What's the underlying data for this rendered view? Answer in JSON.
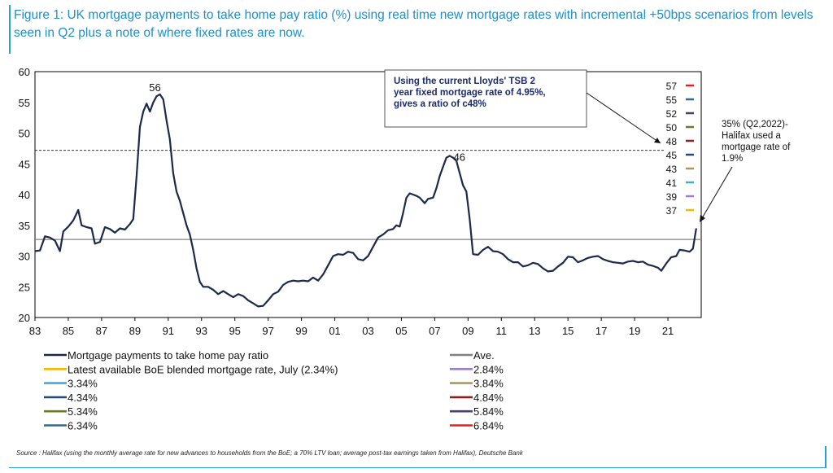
{
  "title": "Figure 1: UK mortgage payments to take home pay ratio (%) using real time new mortgage rates with incremental +50bps scenarios from levels seen in Q2 plus a note of where fixed rates are now.",
  "source": "Source : Halifax (using the monthly average rate for new advances to households from the BoE; a 70% LTV loan; average post-tax earnings taken from Halifax), Deutsche Bank",
  "chart_data": {
    "type": "line",
    "title": "UK mortgage payments to take home pay ratio (%)",
    "xlabel": "",
    "ylabel": "",
    "xlim": [
      1983,
      2023
    ],
    "ylim": [
      20,
      60
    ],
    "y_ticks": [
      "20",
      "25",
      "30",
      "35",
      "40",
      "45",
      "50",
      "55",
      "60"
    ],
    "x_ticks": [
      {
        "year": 1983,
        "label": "83"
      },
      {
        "year": 1985,
        "label": "85"
      },
      {
        "year": 1987,
        "label": "87"
      },
      {
        "year": 1989,
        "label": "89"
      },
      {
        "year": 1991,
        "label": "91"
      },
      {
        "year": 1993,
        "label": "93"
      },
      {
        "year": 1995,
        "label": "95"
      },
      {
        "year": 1997,
        "label": "97"
      },
      {
        "year": 1999,
        "label": "99"
      },
      {
        "year": 2001,
        "label": "01"
      },
      {
        "year": 2003,
        "label": "03"
      },
      {
        "year": 2005,
        "label": "05"
      },
      {
        "year": 2007,
        "label": "07"
      },
      {
        "year": 2009,
        "label": "09"
      },
      {
        "year": 2011,
        "label": "11"
      },
      {
        "year": 2013,
        "label": "13"
      },
      {
        "year": 2015,
        "label": "15"
      },
      {
        "year": 2017,
        "label": "17"
      },
      {
        "year": 2019,
        "label": "19"
      },
      {
        "year": 2021,
        "label": "21"
      }
    ],
    "series": [
      {
        "name": "Mortgage payments to take home pay ratio",
        "color": "#1b2a4a",
        "points": [
          [
            1983.0,
            30.8
          ],
          [
            1983.3,
            30.9
          ],
          [
            1983.6,
            33.2
          ],
          [
            1983.9,
            33.0
          ],
          [
            1984.2,
            32.5
          ],
          [
            1984.5,
            30.8
          ],
          [
            1984.7,
            34.0
          ],
          [
            1985.0,
            34.8
          ],
          [
            1985.3,
            35.8
          ],
          [
            1985.6,
            37.5
          ],
          [
            1985.8,
            35.0
          ],
          [
            1986.1,
            34.7
          ],
          [
            1986.4,
            34.5
          ],
          [
            1986.6,
            32.0
          ],
          [
            1986.9,
            32.3
          ],
          [
            1987.2,
            34.7
          ],
          [
            1987.5,
            34.4
          ],
          [
            1987.8,
            33.8
          ],
          [
            1988.1,
            34.5
          ],
          [
            1988.4,
            34.3
          ],
          [
            1988.7,
            35.2
          ],
          [
            1988.9,
            36.0
          ],
          [
            1989.1,
            43.0
          ],
          [
            1989.3,
            51.0
          ],
          [
            1989.5,
            53.5
          ],
          [
            1989.7,
            54.8
          ],
          [
            1989.9,
            53.5
          ],
          [
            1990.1,
            55.0
          ],
          [
            1990.3,
            56.0
          ],
          [
            1990.5,
            56.3
          ],
          [
            1990.7,
            55.5
          ],
          [
            1990.9,
            52.0
          ],
          [
            1991.1,
            49.0
          ],
          [
            1991.3,
            43.5
          ],
          [
            1991.5,
            40.5
          ],
          [
            1991.7,
            39.0
          ],
          [
            1991.9,
            37.0
          ],
          [
            1992.1,
            35.0
          ],
          [
            1992.3,
            33.5
          ],
          [
            1992.5,
            31.0
          ],
          [
            1992.7,
            28.0
          ],
          [
            1992.9,
            25.8
          ],
          [
            1993.1,
            25.0
          ],
          [
            1993.4,
            25.0
          ],
          [
            1993.7,
            24.5
          ],
          [
            1994.0,
            23.8
          ],
          [
            1994.3,
            24.3
          ],
          [
            1994.6,
            23.8
          ],
          [
            1994.9,
            23.3
          ],
          [
            1995.2,
            23.8
          ],
          [
            1995.5,
            23.5
          ],
          [
            1995.8,
            22.8
          ],
          [
            1996.1,
            22.3
          ],
          [
            1996.4,
            21.8
          ],
          [
            1996.7,
            21.9
          ],
          [
            1997.0,
            22.8
          ],
          [
            1997.3,
            23.8
          ],
          [
            1997.6,
            24.2
          ],
          [
            1997.9,
            25.3
          ],
          [
            1998.2,
            25.8
          ],
          [
            1998.5,
            26.0
          ],
          [
            1998.8,
            25.9
          ],
          [
            1999.1,
            26.0
          ],
          [
            1999.4,
            25.9
          ],
          [
            1999.7,
            26.5
          ],
          [
            2000.0,
            26.0
          ],
          [
            2000.3,
            27.0
          ],
          [
            2000.6,
            28.5
          ],
          [
            2000.9,
            30.0
          ],
          [
            2001.2,
            30.3
          ],
          [
            2001.5,
            30.2
          ],
          [
            2001.8,
            30.7
          ],
          [
            2002.1,
            30.5
          ],
          [
            2002.4,
            29.5
          ],
          [
            2002.7,
            29.3
          ],
          [
            2003.0,
            30.0
          ],
          [
            2003.3,
            31.5
          ],
          [
            2003.6,
            33.0
          ],
          [
            2003.9,
            33.5
          ],
          [
            2004.2,
            34.2
          ],
          [
            2004.5,
            34.4
          ],
          [
            2004.7,
            35.0
          ],
          [
            2004.9,
            34.8
          ],
          [
            2005.1,
            37.0
          ],
          [
            2005.3,
            39.5
          ],
          [
            2005.5,
            40.2
          ],
          [
            2005.7,
            40.0
          ],
          [
            2005.9,
            39.8
          ],
          [
            2006.1,
            39.5
          ],
          [
            2006.4,
            38.6
          ],
          [
            2006.6,
            39.3
          ],
          [
            2006.9,
            39.5
          ],
          [
            2007.1,
            41.0
          ],
          [
            2007.3,
            43.0
          ],
          [
            2007.5,
            44.5
          ],
          [
            2007.7,
            46.0
          ],
          [
            2007.9,
            46.3
          ],
          [
            2008.1,
            46.0
          ],
          [
            2008.3,
            45.5
          ],
          [
            2008.5,
            43.5
          ],
          [
            2008.7,
            41.5
          ],
          [
            2008.9,
            40.5
          ],
          [
            2009.1,
            36.0
          ],
          [
            2009.3,
            30.3
          ],
          [
            2009.6,
            30.2
          ],
          [
            2009.9,
            31.0
          ],
          [
            2010.2,
            31.5
          ],
          [
            2010.5,
            30.8
          ],
          [
            2010.8,
            30.7
          ],
          [
            2011.1,
            30.3
          ],
          [
            2011.4,
            29.5
          ],
          [
            2011.7,
            29.0
          ],
          [
            2012.0,
            29.0
          ],
          [
            2012.3,
            28.3
          ],
          [
            2012.6,
            28.5
          ],
          [
            2012.9,
            28.9
          ],
          [
            2013.2,
            28.7
          ],
          [
            2013.5,
            28.0
          ],
          [
            2013.8,
            27.5
          ],
          [
            2014.1,
            27.6
          ],
          [
            2014.4,
            28.3
          ],
          [
            2014.7,
            28.9
          ],
          [
            2015.0,
            29.9
          ],
          [
            2015.3,
            29.8
          ],
          [
            2015.6,
            29.0
          ],
          [
            2015.9,
            29.3
          ],
          [
            2016.2,
            29.7
          ],
          [
            2016.5,
            29.9
          ],
          [
            2016.8,
            30.0
          ],
          [
            2017.1,
            29.5
          ],
          [
            2017.4,
            29.2
          ],
          [
            2017.7,
            29.0
          ],
          [
            2018.0,
            28.9
          ],
          [
            2018.3,
            28.8
          ],
          [
            2018.6,
            29.1
          ],
          [
            2018.9,
            29.2
          ],
          [
            2019.2,
            29.0
          ],
          [
            2019.5,
            29.1
          ],
          [
            2019.8,
            28.6
          ],
          [
            2020.1,
            28.4
          ],
          [
            2020.4,
            28.1
          ],
          [
            2020.6,
            27.6
          ],
          [
            2020.9,
            28.8
          ],
          [
            2021.2,
            29.8
          ],
          [
            2021.5,
            30.0
          ],
          [
            2021.7,
            31.0
          ],
          [
            2022.0,
            30.9
          ],
          [
            2022.3,
            30.7
          ],
          [
            2022.5,
            31.2
          ],
          [
            2022.7,
            34.5
          ]
        ]
      }
    ],
    "average": 32.7,
    "scenarios": [
      {
        "value": 57,
        "label": "57",
        "color": "#e8201c",
        "legend": "6.84%"
      },
      {
        "value": 55,
        "label": "55",
        "color": "#2e6c8c",
        "legend": "6.34%"
      },
      {
        "value": 52,
        "label": "52",
        "color": "#4a3f66",
        "legend": "5.84%"
      },
      {
        "value": 50,
        "label": "50",
        "color": "#6a7a2a",
        "legend": "5.34%"
      },
      {
        "value": 48,
        "label": "48",
        "color": "#8a2020",
        "legend": "4.84%"
      },
      {
        "value": 45,
        "label": "45",
        "color": "#2a4a70",
        "legend": "4.34%"
      },
      {
        "value": 43,
        "label": "43",
        "color": "#a89a5a",
        "legend": "3.84%"
      },
      {
        "value": 41,
        "label": "41",
        "color": "#44aadd",
        "legend": "3.34%"
      },
      {
        "value": 39,
        "label": "39",
        "color": "#9a7fcf",
        "legend": "2.84%"
      },
      {
        "value": 37,
        "label": "37",
        "color": "#f5b800",
        "legend": "Latest available BoE blended mortgage rate, July (2.34%)"
      }
    ],
    "fixed_rate_line": 47.2,
    "annotations": {
      "peak1": {
        "x": 1990.3,
        "y": 56,
        "text": "56"
      },
      "peak2": {
        "x": 2007.9,
        "y": 46.3,
        "text": "46"
      },
      "box_lines": [
        "Using the current Lloyds' TSB 2",
        "year fixed mortgage rate of 4.95%,",
        "gives a ratio of c48%"
      ],
      "note_lines": [
        "35% (Q2,2022)-",
        "Halifax used a",
        "mortgage rate of",
        "1.9%"
      ]
    },
    "legend": [
      {
        "label": "Mortgage payments to take home pay ratio",
        "color": "#1b2a4a",
        "col": 0
      },
      {
        "label": "Ave.",
        "color": "#808080",
        "col": 1
      },
      {
        "label": "Latest available BoE blended mortgage rate, July (2.34%)",
        "color": "#f5b800",
        "col": 0
      },
      {
        "label": "2.84%",
        "color": "#9a7fcf",
        "col": 1
      },
      {
        "label": "3.34%",
        "color": "#44aadd",
        "col": 0
      },
      {
        "label": "3.84%",
        "color": "#a89a5a",
        "col": 1
      },
      {
        "label": "4.34%",
        "color": "#2a4a70",
        "col": 0
      },
      {
        "label": "4.84%",
        "color": "#8a2020",
        "col": 1
      },
      {
        "label": "5.34%",
        "color": "#6a7a2a",
        "col": 0
      },
      {
        "label": "5.84%",
        "color": "#4a3f66",
        "col": 1
      },
      {
        "label": "6.34%",
        "color": "#2e6c8c",
        "col": 0
      },
      {
        "label": "6.84%",
        "color": "#e8201c",
        "col": 1
      }
    ]
  }
}
